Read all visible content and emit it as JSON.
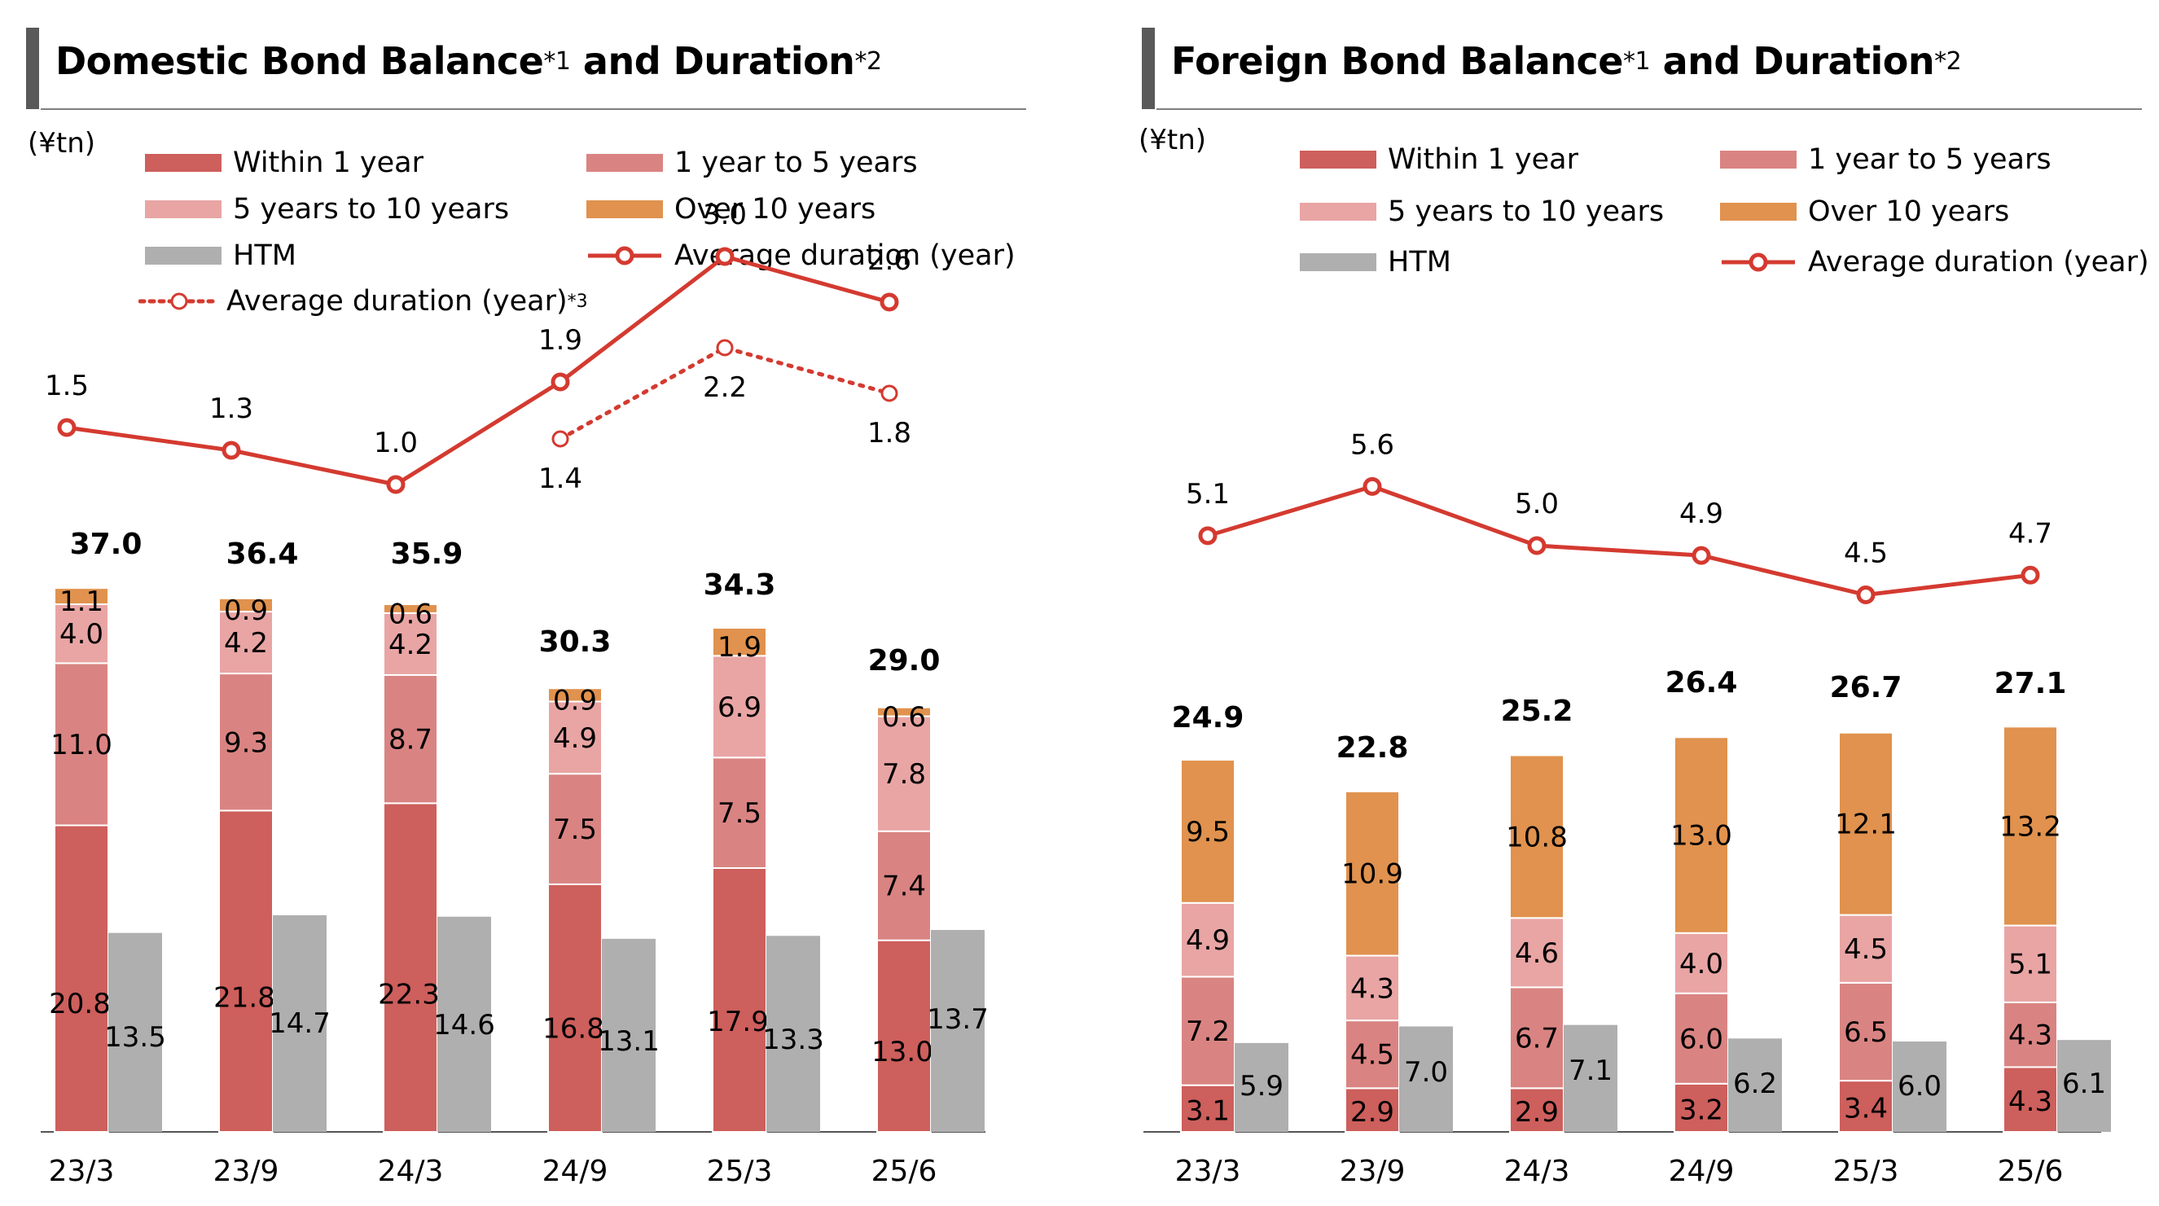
{
  "colors": {
    "within_1y": "#cd5f5c",
    "y1_to_5": "#d98482",
    "y5_to_10": "#e8a5a4",
    "over_10y": "#e0924e",
    "htm": "#afafaf",
    "duration_line": "#d43a30",
    "title_accent": "#595959"
  },
  "domestic": {
    "title_main": "Domestic Bond Balance",
    "title_sup1": "*1",
    "title_and": " and Duration",
    "title_sup2": "*2",
    "unit": "(¥tn)",
    "legend": {
      "within_1y": "Within 1 year",
      "y1_to_5": "1 year to 5 years",
      "y5_to_10": "5 years to 10 years",
      "over_10y": "Over 10 years",
      "htm": "HTM",
      "avg_duration": "Average duration (year)",
      "avg_duration_alt": "Average duration (year)",
      "avg_duration_alt_sup": "*3"
    }
  },
  "foreign": {
    "title_main": "Foreign Bond Balance",
    "title_sup1": "*1",
    "title_and": " and Duration",
    "title_sup2": "*2",
    "unit": "(¥tn)",
    "legend": {
      "within_1y": "Within 1 year",
      "y1_to_5": "1 year to 5 years",
      "y5_to_10": "5 years to 10 years",
      "over_10y": "Over 10 years",
      "htm": "HTM",
      "avg_duration": "Average duration (year)"
    }
  },
  "chart_data": [
    {
      "type": "bar",
      "stacked": true,
      "title": "Domestic Bond Balance*1 and Duration*2",
      "ylabel": "(¥tn)",
      "categories": [
        "23/3",
        "23/9",
        "24/3",
        "24/9",
        "25/3",
        "25/6"
      ],
      "series": [
        {
          "name": "Within 1 year",
          "key": "within_1y",
          "values": [
            20.8,
            21.8,
            22.3,
            16.8,
            17.9,
            13.0
          ]
        },
        {
          "name": "1 year to 5 years",
          "key": "y1_to_5",
          "values": [
            11.0,
            9.3,
            8.7,
            7.5,
            7.5,
            7.4
          ]
        },
        {
          "name": "5 years to 10 years",
          "key": "y5_to_10",
          "values": [
            4.0,
            4.2,
            4.2,
            4.9,
            6.9,
            7.8
          ]
        },
        {
          "name": "Over 10 years",
          "key": "over_10y",
          "values": [
            1.1,
            0.9,
            0.6,
            0.9,
            1.9,
            0.6
          ]
        }
      ],
      "totals": [
        "37.0",
        "36.4",
        "35.9",
        "30.3",
        "34.3",
        "29.0"
      ],
      "htm": {
        "name": "HTM",
        "values": [
          13.5,
          14.7,
          14.6,
          13.1,
          13.3,
          13.7
        ]
      },
      "duration": {
        "name": "Average duration (year)",
        "values": [
          1.5,
          1.3,
          1.0,
          1.9,
          3.0,
          2.6
        ]
      },
      "duration_alt": {
        "name": "Average duration (year)*3",
        "start_index": 3,
        "values": [
          1.4,
          2.2,
          1.8
        ]
      }
    },
    {
      "type": "bar",
      "stacked": true,
      "title": "Foreign Bond Balance*1 and Duration*2",
      "ylabel": "(¥tn)",
      "categories": [
        "23/3",
        "23/9",
        "24/3",
        "24/9",
        "25/3",
        "25/6"
      ],
      "series": [
        {
          "name": "Within 1 year",
          "key": "within_1y",
          "values": [
            3.1,
            2.9,
            2.9,
            3.2,
            3.4,
            4.3
          ]
        },
        {
          "name": "1 year to 5 years",
          "key": "y1_to_5",
          "values": [
            7.2,
            4.5,
            6.7,
            6.0,
            6.5,
            4.3
          ]
        },
        {
          "name": "5 years to 10 years",
          "key": "y5_to_10",
          "values": [
            4.9,
            4.3,
            4.6,
            4.0,
            4.5,
            5.1
          ]
        },
        {
          "name": "Over 10 years",
          "key": "over_10y",
          "values": [
            9.5,
            10.9,
            10.8,
            13.0,
            12.1,
            13.2
          ]
        }
      ],
      "totals": [
        "24.9",
        "22.8",
        "25.2",
        "26.4",
        "26.7",
        "27.1"
      ],
      "htm": {
        "name": "HTM",
        "values": [
          5.9,
          7.0,
          7.1,
          6.2,
          6.0,
          6.1
        ]
      },
      "duration": {
        "name": "Average duration (year)",
        "values": [
          5.1,
          5.6,
          5.0,
          4.9,
          4.5,
          4.7
        ]
      }
    }
  ]
}
